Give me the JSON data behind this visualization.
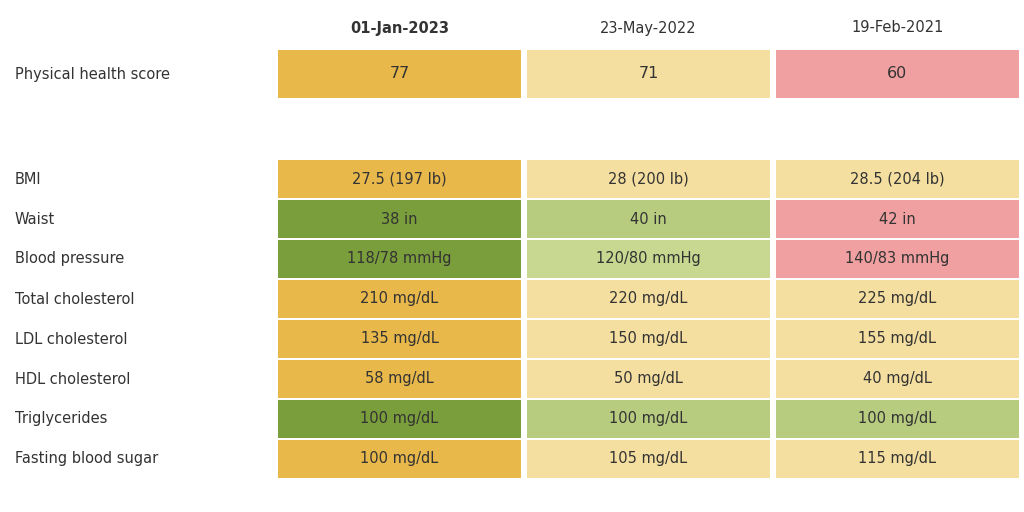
{
  "columns": [
    "01-Jan-2023",
    "23-May-2022",
    "19-Feb-2021"
  ],
  "col_bold": [
    true,
    false,
    false
  ],
  "score_row": {
    "label": "Physical health score",
    "values": [
      "77",
      "71",
      "60"
    ],
    "colors": [
      "#E8B84B",
      "#F5DFA0",
      "#F0A0A0"
    ]
  },
  "rows": [
    {
      "label": "BMI",
      "values": [
        "27.5 (197 lb)",
        "28 (200 lb)",
        "28.5 (204 lb)"
      ],
      "colors": [
        "#E8B84B",
        "#F5DFA0",
        "#F5DFA0"
      ]
    },
    {
      "label": "Waist",
      "values": [
        "38 in",
        "40 in",
        "42 in"
      ],
      "colors": [
        "#7A9E3B",
        "#B8CC80",
        "#F0A0A0"
      ]
    },
    {
      "label": "Blood pressure",
      "values": [
        "118/78 mmHg",
        "120/80 mmHg",
        "140/83 mmHg"
      ],
      "colors": [
        "#7A9E3B",
        "#C8D890",
        "#F0A0A0"
      ]
    },
    {
      "label": "Total cholesterol",
      "values": [
        "210 mg/dL",
        "220 mg/dL",
        "225 mg/dL"
      ],
      "colors": [
        "#E8B84B",
        "#F5DFA0",
        "#F5DFA0"
      ]
    },
    {
      "label": "LDL cholesterol",
      "values": [
        "135 mg/dL",
        "150 mg/dL",
        "155 mg/dL"
      ],
      "colors": [
        "#E8B84B",
        "#F5DFA0",
        "#F5DFA0"
      ]
    },
    {
      "label": "HDL cholesterol",
      "values": [
        "58 mg/dL",
        "50 mg/dL",
        "40 mg/dL"
      ],
      "colors": [
        "#E8B84B",
        "#F5DFA0",
        "#F5DFA0"
      ]
    },
    {
      "label": "Triglycerides",
      "values": [
        "100 mg/dL",
        "100 mg/dL",
        "100 mg/dL"
      ],
      "colors": [
        "#7A9E3B",
        "#B8CC80",
        "#B8CC80"
      ]
    },
    {
      "label": "Fasting blood sugar",
      "values": [
        "100 mg/dL",
        "105 mg/dL",
        "115 mg/dL"
      ],
      "colors": [
        "#E8B84B",
        "#F5DFA0",
        "#F5DFA0"
      ]
    }
  ],
  "background_color": "#FFFFFF",
  "label_fontsize": 10.5,
  "value_fontsize": 10.5,
  "header_fontsize": 10.5,
  "fig_width": 10.24,
  "fig_height": 5.12,
  "dpi": 100
}
